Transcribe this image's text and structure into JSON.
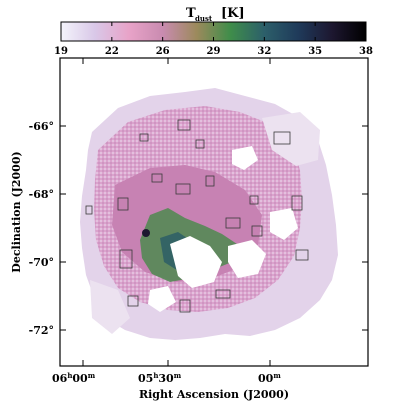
{
  "colorbar": {
    "title_main": "T",
    "title_sub": "dust",
    "title_unit": "[K]",
    "ticks": [
      "19",
      "22",
      "26",
      "29",
      "32",
      "35",
      "38"
    ],
    "colors": [
      "#f4f4fb",
      "#d9c8e8",
      "#e8a3c8",
      "#c98bb0",
      "#9c8a5c",
      "#3f8d4a",
      "#2c5f6a",
      "#1f3a5a",
      "#1d1730",
      "#000000"
    ]
  },
  "map": {
    "xlabel": "Right Ascension (J2000)",
    "ylabel": "Declination (J2000)",
    "dec_ticks": [
      "-66°",
      "-68°",
      "-70°",
      "-72°"
    ],
    "ra_ticks": [
      {
        "main": "06",
        "unit_h": "h",
        "min": "00",
        "unit_m": "m"
      },
      {
        "main": "05",
        "unit_h": "h",
        "min": "30",
        "unit_m": "m"
      },
      {
        "main": "00",
        "unit_h": "",
        "min": "",
        "unit_m": "m"
      }
    ],
    "pixel_colors": {
      "cool": "#e3d3ea",
      "pale": "#ece2f0",
      "warm": "#dba3cd",
      "hot": "#c782b3",
      "green": "#4d8a4f",
      "teal": "#2d5e66",
      "contour": "#3a3a3a"
    }
  }
}
